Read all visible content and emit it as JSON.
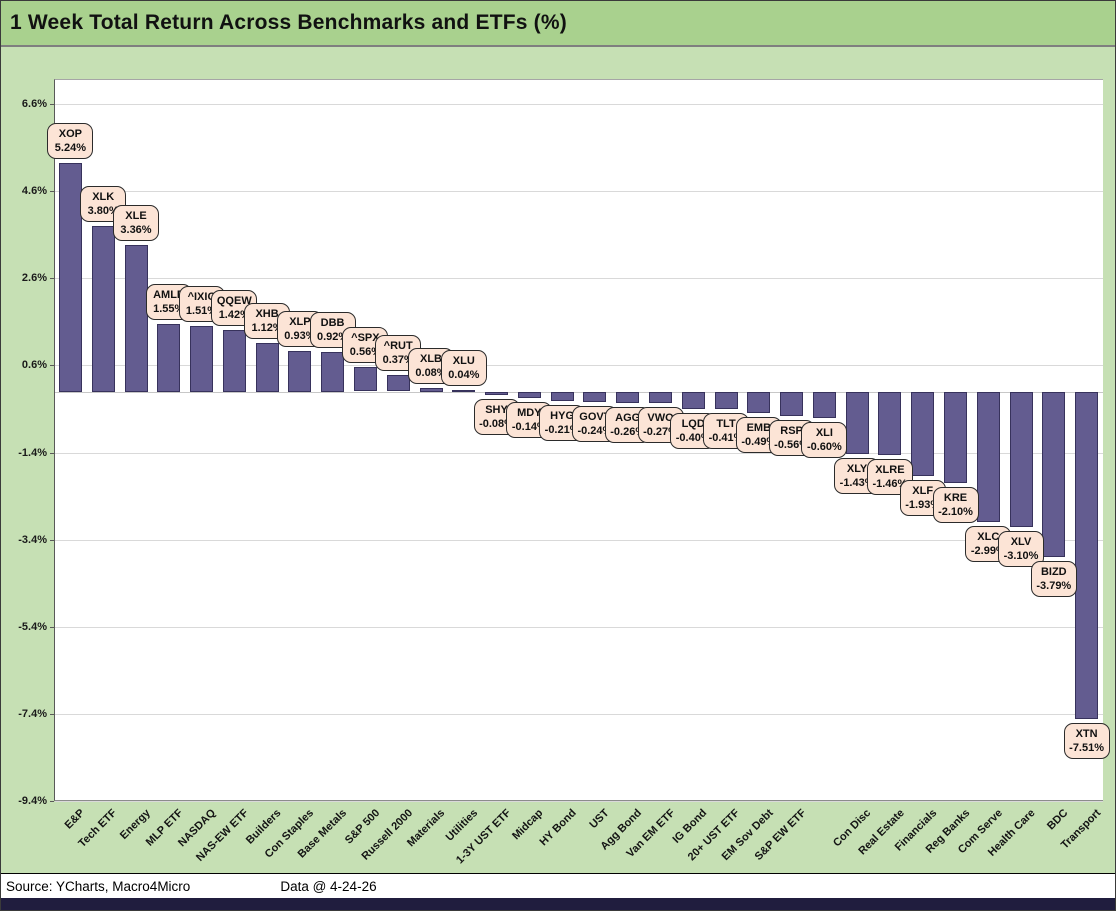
{
  "header": {
    "title": "1 Week Total Return Across Benchmarks and ETFs (%)"
  },
  "footer": {
    "source": "Source: YCharts, Macro4Micro",
    "data_date": "Data @ 4-24-26"
  },
  "colors": {
    "title_band_bg": "#a9d18e",
    "chart_bg": "#c6e0b4",
    "plot_bg": "#ffffff",
    "bar_fill": "#635c90",
    "bar_border": "#37325c",
    "callout_bg": "#fce4d6",
    "callout_border": "#2b2b2b",
    "gridline": "#d9d9d9",
    "bottom_bar": "#201d3e"
  },
  "chart_data": {
    "type": "bar",
    "title": "1 Week Total Return Across Benchmarks and ETFs (%)",
    "xlabel": "",
    "ylabel": "",
    "grid": true,
    "legend": "none",
    "ylim": [
      -9.4,
      7.175
    ],
    "y_ticks": [
      "6.6%",
      "4.6%",
      "2.6%",
      "0.6%",
      "-1.4%",
      "-3.4%",
      "-5.4%",
      "-7.4%",
      "-9.4%"
    ],
    "y_tick_values": [
      6.6,
      4.6,
      2.6,
      0.6,
      -1.4,
      -3.4,
      -5.4,
      -7.4,
      -9.4
    ],
    "points": [
      {
        "ticker": "XOP",
        "value": 5.24,
        "display": "5.24%",
        "category": "E&P"
      },
      {
        "ticker": "XLK",
        "value": 3.8,
        "display": "3.80%",
        "category": "Tech ETF"
      },
      {
        "ticker": "XLE",
        "value": 3.36,
        "display": "3.36%",
        "category": "Energy"
      },
      {
        "ticker": "AMLP",
        "value": 1.55,
        "display": "1.55%",
        "category": "MLP ETF"
      },
      {
        "ticker": "^IXIC",
        "value": 1.51,
        "display": "1.51%",
        "category": "NASDAQ"
      },
      {
        "ticker": "QQEW",
        "value": 1.42,
        "display": "1.42%",
        "category": "NAS-EW ETF"
      },
      {
        "ticker": "XHB",
        "value": 1.12,
        "display": "1.12%",
        "category": "Builders"
      },
      {
        "ticker": "XLP",
        "value": 0.93,
        "display": "0.93%",
        "category": "Con Staples"
      },
      {
        "ticker": "DBB",
        "value": 0.92,
        "display": "0.92%",
        "category": "Base Metals"
      },
      {
        "ticker": "^SPX",
        "value": 0.56,
        "display": "0.56%",
        "category": "S&P 500"
      },
      {
        "ticker": "^RUT",
        "value": 0.37,
        "display": "0.37%",
        "category": "Russell 2000"
      },
      {
        "ticker": "XLB",
        "value": 0.08,
        "display": "0.08%",
        "category": "Materials"
      },
      {
        "ticker": "XLU",
        "value": 0.04,
        "display": "0.04%",
        "category": "Utilities"
      },
      {
        "ticker": "SHY",
        "value": -0.08,
        "display": "-0.08%",
        "category": "1-3Y UST ETF"
      },
      {
        "ticker": "MDY",
        "value": -0.14,
        "display": "-0.14%",
        "category": "Midcap"
      },
      {
        "ticker": "HYG",
        "value": -0.21,
        "display": "-0.21%",
        "category": "HY Bond"
      },
      {
        "ticker": "GOVT",
        "value": -0.24,
        "display": "-0.24%",
        "category": "UST"
      },
      {
        "ticker": "AGG",
        "value": -0.26,
        "display": "-0.26%",
        "category": "Agg Bond"
      },
      {
        "ticker": "VWO",
        "value": -0.27,
        "display": "-0.27%",
        "category": "Van EM ETF"
      },
      {
        "ticker": "LQD",
        "value": -0.4,
        "display": "-0.40%",
        "category": "IG Bond"
      },
      {
        "ticker": "TLT",
        "value": -0.41,
        "display": "-0.41%",
        "category": "20+ UST ETF"
      },
      {
        "ticker": "EMB",
        "value": -0.49,
        "display": "-0.49%",
        "category": "EM Sov Debt"
      },
      {
        "ticker": "RSP",
        "value": -0.56,
        "display": "-0.56%",
        "category": "S&P EW ETF"
      },
      {
        "ticker": "XLI",
        "value": -0.6,
        "display": "-0.60%",
        "category": ""
      },
      {
        "ticker": "XLY",
        "value": -1.43,
        "display": "-1.43%",
        "category": "Con Disc"
      },
      {
        "ticker": "XLRE",
        "value": -1.46,
        "display": "-1.46%",
        "category": "Real Estate"
      },
      {
        "ticker": "XLF",
        "value": -1.93,
        "display": "-1.93%",
        "category": "Financials"
      },
      {
        "ticker": "KRE",
        "value": -2.1,
        "display": "-2.10%",
        "category": "Reg Banks"
      },
      {
        "ticker": "XLC",
        "value": -2.99,
        "display": "-2.99%",
        "category": "Com Serve"
      },
      {
        "ticker": "XLV",
        "value": -3.1,
        "display": "-3.10%",
        "category": "Health Care"
      },
      {
        "ticker": "BIZD",
        "value": -3.79,
        "display": "-3.79%",
        "category": "BDC"
      },
      {
        "ticker": "XTN",
        "value": -7.51,
        "display": "-7.51%",
        "category": "Transport"
      }
    ]
  }
}
